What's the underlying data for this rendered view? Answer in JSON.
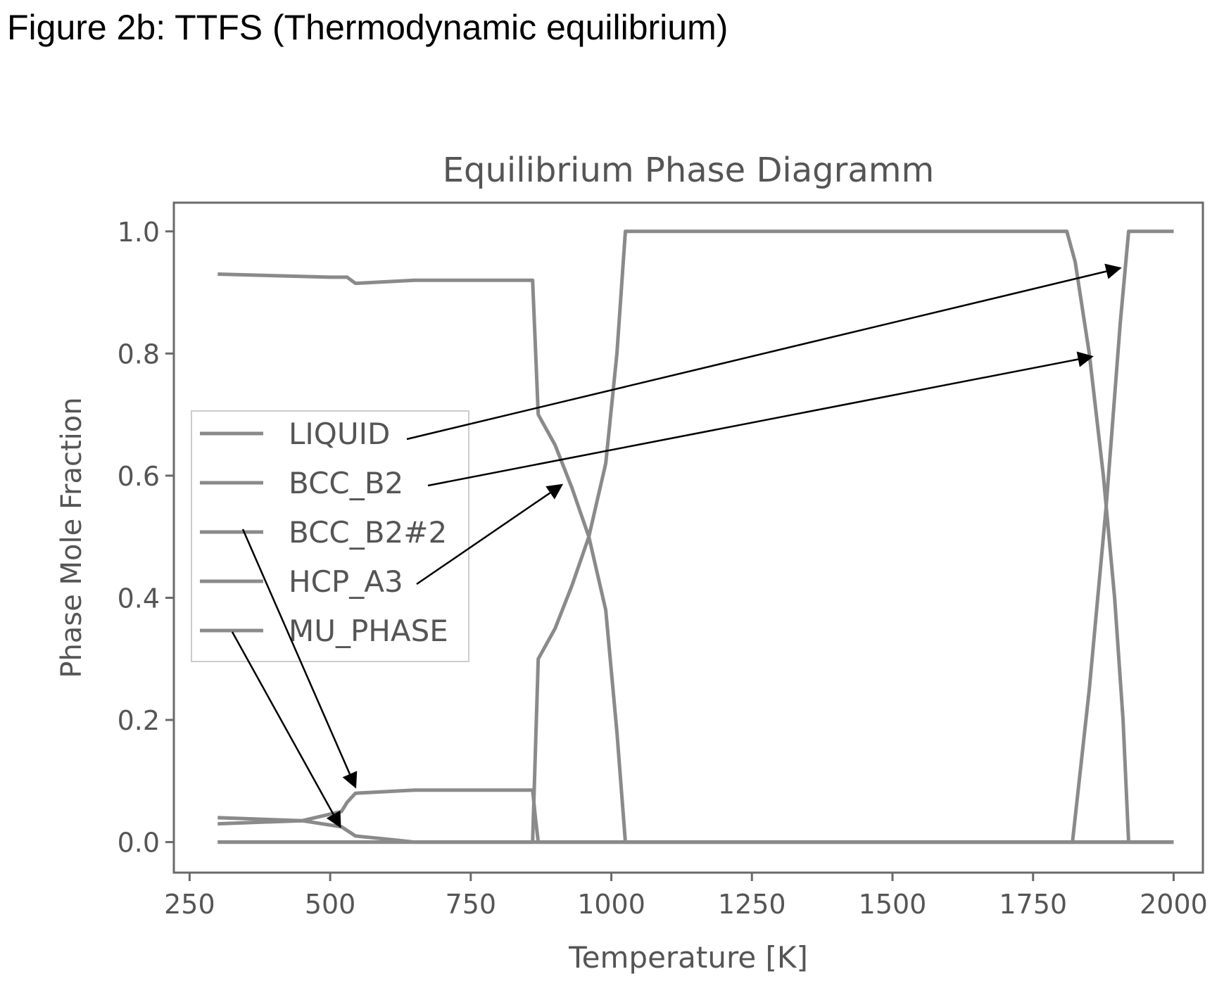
{
  "figure_caption": "Figure 2b: TTFS (Thermodynamic equilibrium)",
  "chart_data": {
    "type": "line",
    "title": "Equilibrium Phase Diagramm",
    "xlabel": "Temperature [K]",
    "ylabel": "Phase Mole Fraction",
    "xlim": [
      222,
      2052
    ],
    "ylim": [
      -0.05,
      1.047
    ],
    "xticks": [
      250,
      500,
      750,
      1000,
      1250,
      1500,
      1750,
      2000
    ],
    "yticks": [
      0.0,
      0.2,
      0.4,
      0.6,
      0.8,
      1.0
    ],
    "xtick_labels": [
      "250",
      "500",
      "750",
      "1000",
      "1250",
      "1500",
      "1750",
      "2000"
    ],
    "ytick_labels": [
      "0.0",
      "0.2",
      "0.4",
      "0.6",
      "0.8",
      "1.0"
    ],
    "grid": false,
    "legend_position": "center-left",
    "line_color": "#8a8a8a",
    "series": [
      {
        "name": "LIQUID",
        "x": [
          300,
          1820,
          1850,
          1880,
          1905,
          1920,
          2000
        ],
        "y": [
          0,
          0,
          0.25,
          0.55,
          0.85,
          1.0,
          1.0
        ]
      },
      {
        "name": "BCC_B2",
        "x": [
          300,
          860,
          870,
          900,
          930,
          960,
          990,
          1010,
          1025,
          1810,
          1825,
          1850,
          1875,
          1895,
          1910,
          1920,
          2000
        ],
        "y": [
          0,
          0,
          0.3,
          0.35,
          0.42,
          0.5,
          0.62,
          0.8,
          1.0,
          1.0,
          0.95,
          0.8,
          0.6,
          0.4,
          0.2,
          0,
          0
        ]
      },
      {
        "name": "BCC_B2#2",
        "x": [
          300,
          450,
          520,
          530,
          545,
          650,
          860,
          865,
          870,
          2000
        ],
        "y": [
          0.03,
          0.035,
          0.05,
          0.065,
          0.08,
          0.085,
          0.085,
          0.04,
          0,
          0
        ]
      },
      {
        "name": "HCP_A3",
        "x": [
          300,
          500,
          530,
          545,
          650,
          860,
          870,
          900,
          930,
          960,
          990,
          1010,
          1025,
          2000
        ],
        "y": [
          0.93,
          0.925,
          0.925,
          0.915,
          0.92,
          0.92,
          0.7,
          0.65,
          0.58,
          0.5,
          0.38,
          0.18,
          0,
          0
        ]
      },
      {
        "name": "MU_PHASE",
        "x": [
          300,
          450,
          520,
          545,
          600,
          650,
          2000
        ],
        "y": [
          0.04,
          0.035,
          0.025,
          0.01,
          0.005,
          0,
          0
        ]
      }
    ],
    "annotations": [
      {
        "from_series": "LIQUID",
        "to": [
          1905,
          0.94
        ]
      },
      {
        "from_series": "BCC_B2",
        "to": [
          1855,
          0.795
        ]
      },
      {
        "from_series": "BCC_B2#2",
        "to": [
          545,
          0.09
        ]
      },
      {
        "from_series": "HCP_A3",
        "to": [
          912,
          0.585
        ]
      },
      {
        "from_series": "MU_PHASE",
        "to": [
          518,
          0.025
        ]
      }
    ]
  }
}
